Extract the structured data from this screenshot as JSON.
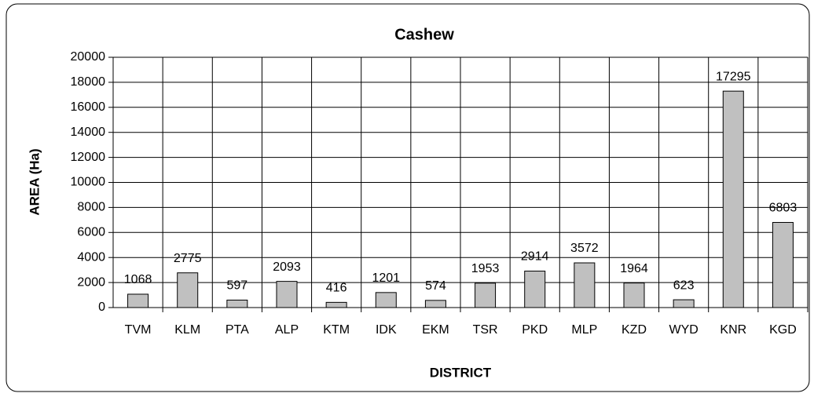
{
  "chart_data": {
    "type": "bar",
    "title": "Cashew",
    "x_label": "DISTRICT",
    "y_label": "AREA (Ha)",
    "categories": [
      "TVM",
      "KLM",
      "PTA",
      "ALP",
      "KTM",
      "IDK",
      "EKM",
      "TSR",
      "PKD",
      "MLP",
      "KZD",
      "WYD",
      "KNR",
      "KGD"
    ],
    "values": [
      1068,
      2775,
      597,
      2093,
      416,
      1201,
      574,
      1953,
      2914,
      3572,
      1964,
      623,
      17295,
      6803
    ],
    "color": "#c0c0c0",
    "ylim": [
      0,
      20000
    ],
    "yticks": [
      0,
      2000,
      4000,
      6000,
      8000,
      10000,
      12000,
      14000,
      16000,
      18000,
      20000
    ],
    "grid": true
  }
}
